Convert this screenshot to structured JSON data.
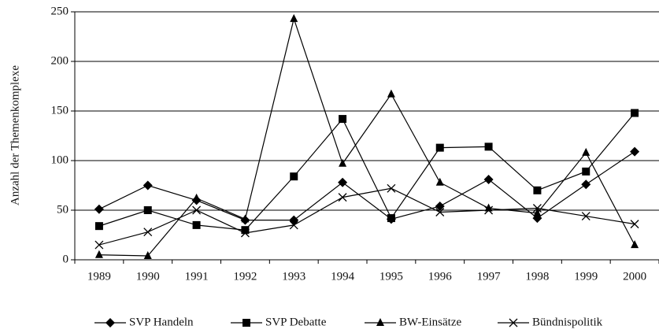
{
  "chart_data": {
    "type": "line",
    "y_label": "Anzahl der Themenkomplexe",
    "categories": [
      "1989",
      "1990",
      "1991",
      "1992",
      "1993",
      "1994",
      "1995",
      "1996",
      "1997",
      "1998",
      "1999",
      "2000"
    ],
    "series": [
      {
        "name": "SVP Handeln",
        "color": "#000000",
        "marker": "diamond",
        "values": [
          51,
          75,
          60,
          40,
          40,
          78,
          41,
          54,
          81,
          42,
          76,
          109
        ]
      },
      {
        "name": "SVP Debatte",
        "color": "#000000",
        "marker": "square",
        "values": [
          34,
          50,
          35,
          30,
          84,
          142,
          42,
          113,
          114,
          70,
          89,
          148
        ]
      },
      {
        "name": "BW-Einsätze",
        "color": "#000000",
        "marker": "triangle",
        "values": [
          5,
          4,
          62,
          41,
          243,
          97,
          167,
          78,
          52,
          47,
          108,
          15
        ]
      },
      {
        "name": "Bündnispolitik",
        "color": "#000000",
        "marker": "x",
        "values": [
          15,
          28,
          50,
          27,
          35,
          63,
          72,
          48,
          50,
          52,
          44,
          36
        ]
      }
    ],
    "ylim": [
      0,
      250
    ],
    "yticks": [
      0,
      50,
      100,
      150,
      200,
      250
    ],
    "grid": true,
    "legend": "bottom"
  }
}
